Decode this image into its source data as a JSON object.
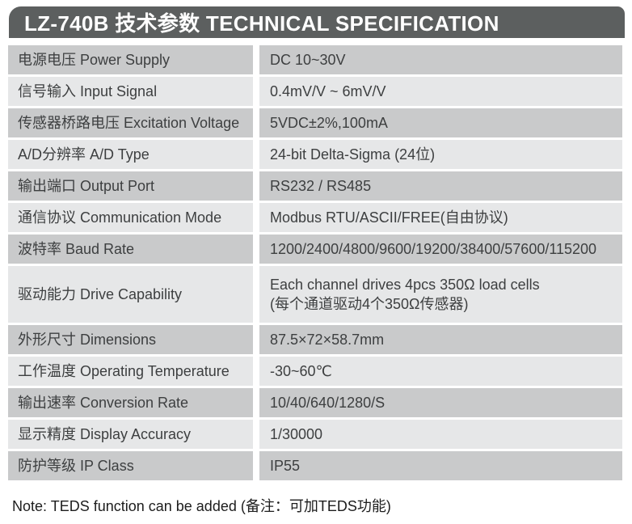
{
  "header": {
    "title": "LZ-740B 技术参数 TECHNICAL SPECIFICATION"
  },
  "table": {
    "rows": [
      {
        "label": "电源电压 Power Supply",
        "value": "DC 10~30V"
      },
      {
        "label": "信号输入 Input Signal",
        "value": "0.4mV/V ~ 6mV/V"
      },
      {
        "label": "传感器桥路电压 Excitation Voltage",
        "value": "5VDC±2%,100mA"
      },
      {
        "label": "A/D分辨率 A/D Type",
        "value": "24-bit Delta-Sigma (24位)"
      },
      {
        "label": "输出端口 Output Port",
        "value": "RS232 / RS485"
      },
      {
        "label": "通信协议 Communication Mode",
        "value": "Modbus RTU/ASCII/FREE(自由协议)"
      },
      {
        "label": "波特率 Baud Rate",
        "value": "1200/2400/4800/9600/19200/38400/57600/115200"
      },
      {
        "label": "驱动能力 Drive Capability",
        "value": "Each channel drives 4pcs 350Ω load cells\n(每个通道驱动4个350Ω传感器)"
      },
      {
        "label": "外形尺寸 Dimensions",
        "value": "87.5×72×58.7mm"
      },
      {
        "label": "工作温度 Operating Temperature",
        "value": "-30~60℃"
      },
      {
        "label": "输出速率 Conversion Rate",
        "value": "10/40/640/1280/S"
      },
      {
        "label": "显示精度 Display Accuracy",
        "value": "1/30000"
      },
      {
        "label": "防护等级 IP Class",
        "value": "IP55"
      }
    ]
  },
  "note": "Note: TEDS function can be added (备注：可加TEDS功能)",
  "colors": {
    "header_bg": "#5C5F5F",
    "row_dark": "#C9CACB",
    "row_light": "#E6E7E8",
    "text_color": "#3D3F40"
  }
}
